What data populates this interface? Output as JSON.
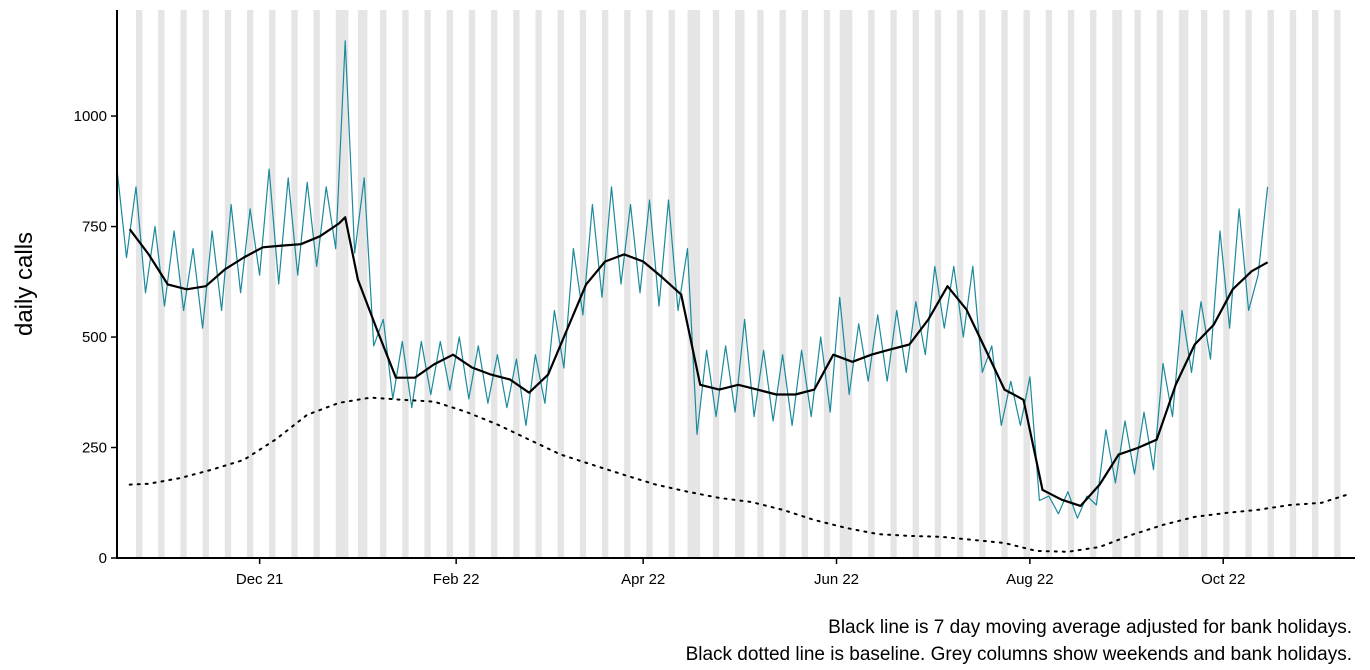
{
  "chart_data": {
    "type": "line",
    "y_label": "daily calls",
    "captions": [
      "Black line is 7 day moving average adjusted for bank holidays.",
      "Black dotted line is baseline. Grey columns show weekends and bank holidays."
    ],
    "xlim": [
      -45,
      344
    ],
    "ylim": [
      0,
      1240
    ],
    "xticks": [
      {
        "value": 0,
        "label": "Dec 21"
      },
      {
        "value": 62,
        "label": "Feb 22"
      },
      {
        "value": 121,
        "label": "Apr 22"
      },
      {
        "value": 182,
        "label": "Jun 22"
      },
      {
        "value": 243,
        "label": "Aug 22"
      },
      {
        "value": 304,
        "label": "Oct 22"
      }
    ],
    "yticks": [
      0,
      250,
      500,
      750,
      1000
    ],
    "shade_color": "#e5e5e5",
    "weekend_starts": [
      -39,
      -32,
      -25,
      -18,
      -11,
      -4,
      3,
      10,
      17,
      24,
      31,
      38,
      45,
      52,
      59,
      66,
      73,
      80,
      87,
      94,
      101,
      108,
      115,
      122,
      129,
      136,
      143,
      150,
      157,
      164,
      171,
      178,
      185,
      192,
      199,
      206,
      213,
      220,
      227,
      234,
      241,
      248,
      255,
      262,
      269,
      276,
      283,
      290,
      297,
      304,
      311,
      318,
      325,
      332,
      339
    ],
    "bank_holidays": [
      26,
      27,
      33,
      135,
      138,
      152,
      183,
      184,
      271,
      292
    ],
    "series": [
      {
        "color": "#1a8a9c",
        "width": 1.2,
        "style": "solid",
        "x": [
          -45,
          -42,
          -39,
          -36,
          -33,
          -30,
          -27,
          -24,
          -21,
          -18,
          -15,
          -12,
          -9,
          -6,
          -3,
          0,
          3,
          6,
          9,
          12,
          15,
          18,
          21,
          24,
          27,
          30,
          33,
          36,
          39,
          42,
          45,
          48,
          51,
          54,
          57,
          60,
          63,
          66,
          69,
          72,
          75,
          78,
          81,
          84,
          87,
          90,
          93,
          96,
          99,
          102,
          105,
          108,
          111,
          114,
          117,
          120,
          123,
          126,
          129,
          132,
          135,
          138,
          141,
          144,
          147,
          150,
          153,
          156,
          159,
          162,
          165,
          168,
          171,
          174,
          177,
          180,
          183,
          186,
          189,
          192,
          195,
          198,
          201,
          204,
          207,
          210,
          213,
          216,
          219,
          222,
          225,
          228,
          231,
          234,
          237,
          240,
          243,
          246,
          249,
          252,
          255,
          258,
          261,
          264,
          267,
          270,
          273,
          276,
          279,
          282,
          285,
          288,
          291,
          294,
          297,
          300,
          303,
          306,
          309,
          312,
          315,
          318
        ],
        "values": [
          880,
          680,
          840,
          600,
          750,
          570,
          740,
          560,
          700,
          520,
          740,
          560,
          800,
          600,
          790,
          640,
          880,
          620,
          860,
          640,
          850,
          660,
          840,
          700,
          1170,
          690,
          860,
          480,
          540,
          360,
          490,
          340,
          490,
          370,
          490,
          380,
          500,
          360,
          480,
          350,
          460,
          340,
          450,
          300,
          460,
          350,
          560,
          430,
          700,
          550,
          800,
          590,
          840,
          620,
          800,
          600,
          810,
          570,
          810,
          560,
          700,
          280,
          470,
          320,
          480,
          330,
          540,
          320,
          470,
          310,
          460,
          300,
          470,
          320,
          500,
          330,
          590,
          370,
          530,
          400,
          550,
          400,
          560,
          420,
          580,
          460,
          660,
          520,
          660,
          500,
          660,
          420,
          480,
          300,
          400,
          300,
          410,
          130,
          140,
          100,
          150,
          90,
          140,
          120,
          290,
          170,
          310,
          190,
          330,
          200,
          440,
          320,
          560,
          420,
          580,
          450,
          740,
          520,
          790,
          560,
          640,
          840
        ]
      },
      {
        "color": "#000000",
        "width": 2.2,
        "style": "solid",
        "x": [
          -41,
          -35,
          -29,
          -23,
          -17,
          -11,
          -5,
          1,
          7,
          13,
          19,
          25,
          27,
          31,
          37,
          43,
          49,
          55,
          61,
          67,
          73,
          79,
          85,
          91,
          97,
          103,
          109,
          115,
          121,
          127,
          133,
          139,
          145,
          151,
          157,
          163,
          169,
          175,
          181,
          187,
          193,
          199,
          205,
          211,
          217,
          223,
          229,
          235,
          241,
          247,
          253,
          259,
          265,
          271,
          277,
          283,
          289,
          295,
          301,
          307,
          313,
          318
        ],
        "values": [
          744,
          687,
          619,
          608,
          615,
          653,
          680,
          703,
          707,
          710,
          728,
          757,
          771,
          630,
          517,
          408,
          408,
          438,
          460,
          431,
          415,
          404,
          374,
          415,
          517,
          619,
          671,
          687,
          671,
          635,
          596,
          392,
          381,
          392,
          381,
          370,
          370,
          381,
          460,
          444,
          460,
          472,
          483,
          540,
          615,
          562,
          472,
          381,
          358,
          154,
          132,
          118,
          166,
          234,
          249,
          268,
          392,
          483,
          528,
          608,
          649,
          669
        ]
      },
      {
        "color": "#000000",
        "width": 2,
        "style": "dotted",
        "x": [
          -41,
          -35,
          -25,
          -15,
          -5,
          5,
          15,
          25,
          35,
          45,
          55,
          65,
          75,
          85,
          95,
          105,
          115,
          125,
          135,
          145,
          155,
          165,
          175,
          185,
          195,
          205,
          215,
          225,
          235,
          245,
          255,
          265,
          275,
          285,
          295,
          305,
          315,
          325,
          335,
          343
        ],
        "values": [
          166,
          168,
          181,
          200,
          222,
          268,
          324,
          351,
          363,
          358,
          354,
          331,
          302,
          268,
          234,
          211,
          188,
          166,
          150,
          136,
          127,
          109,
          86,
          68,
          54,
          50,
          48,
          41,
          34,
          16,
          14,
          25,
          52,
          75,
          93,
          102,
          109,
          120,
          125,
          143
        ]
      }
    ]
  }
}
